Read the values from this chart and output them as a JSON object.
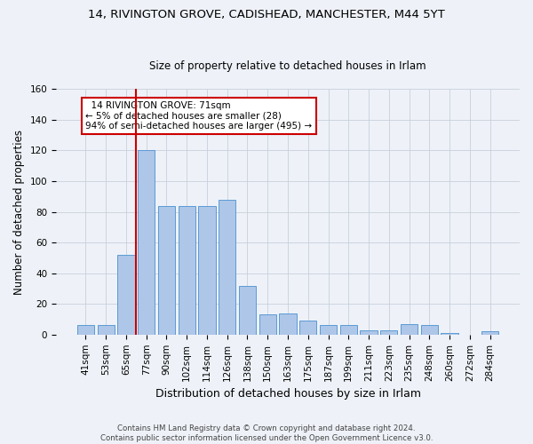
{
  "title1": "14, RIVINGTON GROVE, CADISHEAD, MANCHESTER, M44 5YT",
  "title2": "Size of property relative to detached houses in Irlam",
  "xlabel": "Distribution of detached houses by size in Irlam",
  "ylabel": "Number of detached properties",
  "bar_labels": [
    "41sqm",
    "53sqm",
    "65sqm",
    "77sqm",
    "90sqm",
    "102sqm",
    "114sqm",
    "126sqm",
    "138sqm",
    "150sqm",
    "163sqm",
    "175sqm",
    "187sqm",
    "199sqm",
    "211sqm",
    "223sqm",
    "235sqm",
    "248sqm",
    "260sqm",
    "272sqm",
    "284sqm"
  ],
  "bar_values": [
    6,
    6,
    52,
    120,
    84,
    84,
    84,
    88,
    32,
    13,
    14,
    9,
    6,
    6,
    3,
    3,
    7,
    6,
    1,
    0,
    2
  ],
  "bar_color": "#aec6e8",
  "bar_edge_color": "#5b9bd5",
  "red_line_label": "14 RIVINGTON GROVE: 71sqm",
  "pct_smaller": "5% of detached houses are smaller (28)",
  "pct_larger": "94% of semi-detached houses are larger (495)",
  "annotation_box_color": "#ffffff",
  "annotation_box_edge": "#cc0000",
  "red_line_color": "#cc0000",
  "ylim": [
    0,
    160
  ],
  "yticks": [
    0,
    20,
    40,
    60,
    80,
    100,
    120,
    140,
    160
  ],
  "grid_color": "#c8d0dc",
  "background_color": "#eef2f8",
  "title1_fontsize": 9.5,
  "title2_fontsize": 8.5,
  "xlabel_fontsize": 9,
  "ylabel_fontsize": 8.5,
  "tick_fontsize": 7.5,
  "footer1": "Contains HM Land Registry data © Crown copyright and database right 2024.",
  "footer2": "Contains public sector information licensed under the Open Government Licence v3.0."
}
